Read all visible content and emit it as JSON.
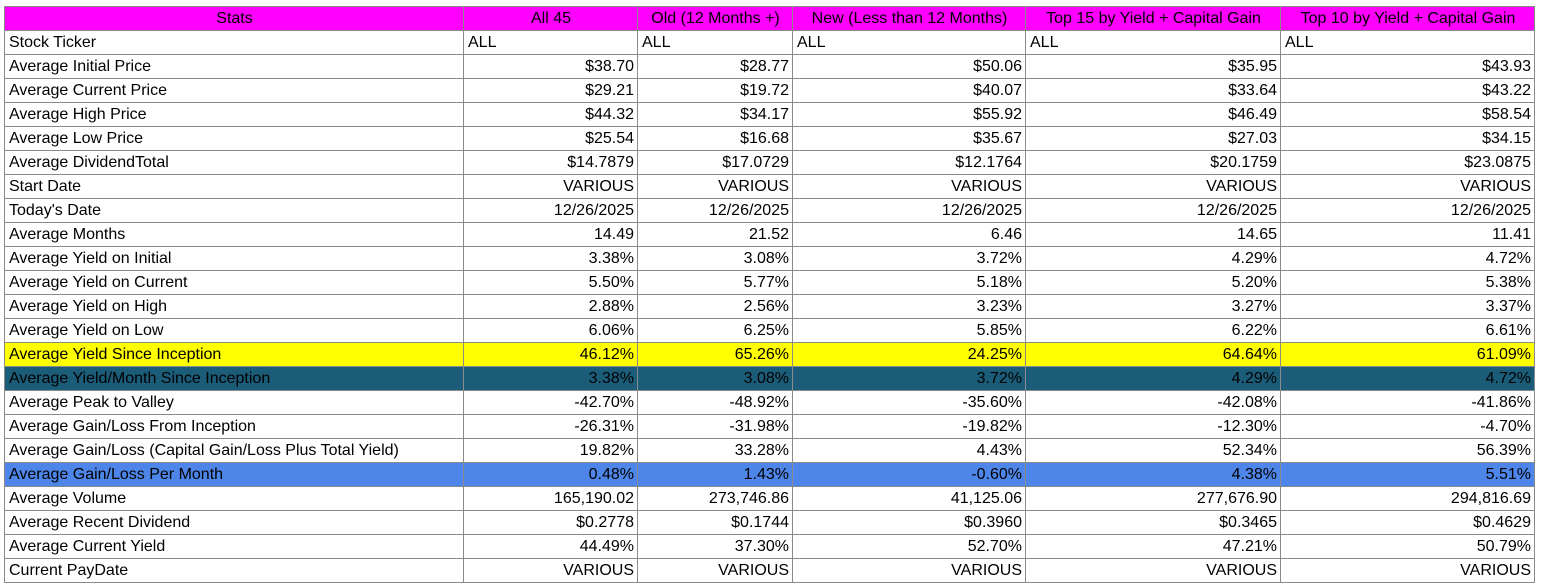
{
  "colors": {
    "header_bg": "#ff00ff",
    "highlight_yellow": "#ffff00",
    "highlight_teal": "#1b5c79",
    "highlight_blue": "#4d86e8",
    "grid": "#8a8a8a"
  },
  "table": {
    "headers": [
      "Stats",
      "All 45",
      "Old (12 Months +)",
      "New (Less than 12 Months)",
      "Top 15 by Yield + Capital Gain",
      "Top 10 by Yield + Capital Gain"
    ],
    "rows": [
      {
        "label": "Stock Ticker",
        "values": [
          "ALL",
          "ALL",
          "ALL",
          "ALL",
          "ALL"
        ]
      },
      {
        "label": "Average Initial Price",
        "values": [
          "$38.70",
          "$28.77",
          "$50.06",
          "$35.95",
          "$43.93"
        ]
      },
      {
        "label": "Average Current Price",
        "values": [
          "$29.21",
          "$19.72",
          "$40.07",
          "$33.64",
          "$43.22"
        ]
      },
      {
        "label": "Average High Price",
        "values": [
          "$44.32",
          "$34.17",
          "$55.92",
          "$46.49",
          "$58.54"
        ]
      },
      {
        "label": "Average Low Price",
        "values": [
          "$25.54",
          "$16.68",
          "$35.67",
          "$27.03",
          "$34.15"
        ]
      },
      {
        "label": "Average DividendTotal",
        "values": [
          "$14.7879",
          "$17.0729",
          "$12.1764",
          "$20.1759",
          "$23.0875"
        ]
      },
      {
        "label": "Start Date",
        "values": [
          "VARIOUS",
          "VARIOUS",
          "VARIOUS",
          "VARIOUS",
          "VARIOUS"
        ]
      },
      {
        "label": "Today's Date",
        "values": [
          "12/26/2025",
          "12/26/2025",
          "12/26/2025",
          "12/26/2025",
          "12/26/2025"
        ]
      },
      {
        "label": "Average Months",
        "values": [
          "14.49",
          "21.52",
          "6.46",
          "14.65",
          "11.41"
        ]
      },
      {
        "label": "Average Yield on Initial",
        "values": [
          "3.38%",
          "3.08%",
          "3.72%",
          "4.29%",
          "4.72%"
        ]
      },
      {
        "label": "Average Yield on Current",
        "values": [
          "5.50%",
          "5.77%",
          "5.18%",
          "5.20%",
          "5.38%"
        ]
      },
      {
        "label": "Average Yield on High",
        "values": [
          "2.88%",
          "2.56%",
          "3.23%",
          "3.27%",
          "3.37%"
        ]
      },
      {
        "label": "Average Yield on Low",
        "values": [
          "6.06%",
          "6.25%",
          "5.85%",
          "6.22%",
          "6.61%"
        ]
      },
      {
        "label": "Average Yield Since Inception",
        "values": [
          "46.12%",
          "65.26%",
          "24.25%",
          "64.64%",
          "61.09%"
        ]
      },
      {
        "label": "Average Yield/Month Since Inception",
        "values": [
          "3.38%",
          "3.08%",
          "3.72%",
          "4.29%",
          "4.72%"
        ]
      },
      {
        "label": "Average Peak to Valley",
        "values": [
          "-42.70%",
          "-48.92%",
          "-35.60%",
          "-42.08%",
          "-41.86%"
        ]
      },
      {
        "label": "Average Gain/Loss From Inception",
        "values": [
          "-26.31%",
          "-31.98%",
          "-19.82%",
          "-12.30%",
          "-4.70%"
        ]
      },
      {
        "label": "Average Gain/Loss (Capital Gain/Loss Plus Total Yield)",
        "values": [
          "19.82%",
          "33.28%",
          "4.43%",
          "52.34%",
          "56.39%"
        ]
      },
      {
        "label": "Average Gain/Loss Per Month",
        "values": [
          "0.48%",
          "1.43%",
          "-0.60%",
          "4.38%",
          "5.51%"
        ]
      },
      {
        "label": "Average Volume",
        "values": [
          "165,190.02",
          "273,746.86",
          "41,125.06",
          "277,676.90",
          "294,816.69"
        ]
      },
      {
        "label": "Average Recent Dividend",
        "values": [
          "$0.2778",
          "$0.1744",
          "$0.3960",
          "$0.3465",
          "$0.4629"
        ]
      },
      {
        "label": "Average Current Yield",
        "values": [
          "44.49%",
          "37.30%",
          "52.70%",
          "47.21%",
          "50.79%"
        ]
      },
      {
        "label": "Current PayDate",
        "values": [
          "VARIOUS",
          "VARIOUS",
          "VARIOUS",
          "VARIOUS",
          "VARIOUS"
        ]
      }
    ]
  }
}
